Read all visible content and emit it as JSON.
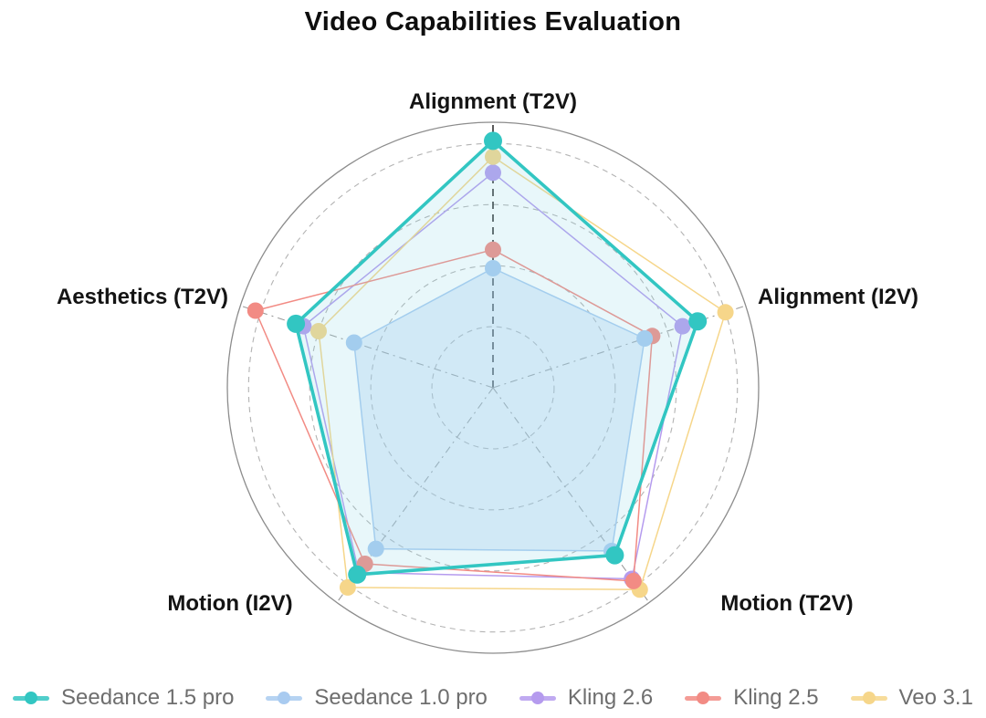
{
  "chart_data": {
    "type": "radar",
    "title": "Video Capabilities Evaluation",
    "categories": [
      "Alignment (T2V)",
      "Alignment (I2V)",
      "Motion (T2V)",
      "Motion (I2V)",
      "Aesthetics (T2V)"
    ],
    "axis_range": [
      0,
      1
    ],
    "grid": {
      "rings": [
        0.23,
        0.46,
        0.69,
        0.92
      ],
      "outer_circle": 1.0,
      "ring_style": "dashed",
      "spoke_style": "dashed"
    },
    "legend_position": "bottom",
    "draw_order": [
      2,
      4,
      3,
      1,
      0
    ],
    "series": [
      {
        "id": "seedance-1-5-pro",
        "name": "Seedance 1.5 pro",
        "color": "#32c6c2",
        "line_width": 3.6,
        "marker_radius": 10,
        "fill": "rgba(140,216,230,0.20)",
        "values": [
          0.93,
          0.81,
          0.78,
          0.87,
          0.78
        ]
      },
      {
        "id": "seedance-1-0-pro",
        "name": "Seedance 1.0 pro",
        "color": "#a9cbf0",
        "line_width": 1.5,
        "marker_radius": 9,
        "fill": "rgba(169,203,240,0.32)",
        "values": [
          0.45,
          0.6,
          0.76,
          0.75,
          0.55
        ]
      },
      {
        "id": "kling-2-6",
        "name": "Kling 2.6",
        "color": "#b59bee",
        "line_width": 1.5,
        "marker_radius": 9,
        "fill": null,
        "values": [
          0.81,
          0.75,
          0.89,
          0.86,
          0.75
        ]
      },
      {
        "id": "kling-2-5",
        "name": "Kling 2.5",
        "color": "#f28b84",
        "line_width": 1.5,
        "marker_radius": 9,
        "fill": null,
        "values": [
          0.52,
          0.63,
          0.9,
          0.82,
          0.94
        ]
      },
      {
        "id": "veo-3-1",
        "name": "Veo 3.1",
        "color": "#f6d68a",
        "line_width": 1.5,
        "marker_radius": 9,
        "fill": null,
        "values": [
          0.87,
          0.92,
          0.94,
          0.93,
          0.69
        ]
      }
    ]
  }
}
